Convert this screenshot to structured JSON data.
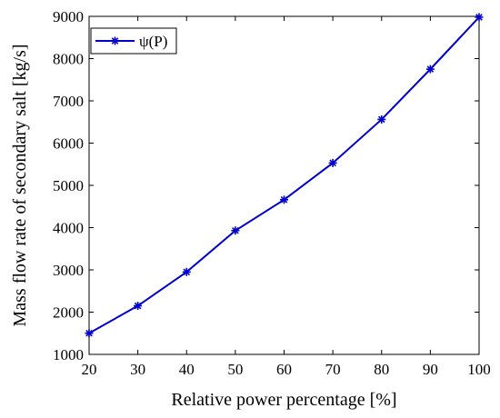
{
  "chart_data": {
    "type": "line",
    "title": "",
    "xlabel": "Relative power percentage [%]",
    "ylabel": "Mass flow rate of secondary salt [kg/s]",
    "xlim": [
      20,
      100
    ],
    "ylim": [
      1000,
      9000
    ],
    "xticks": [
      20,
      30,
      40,
      50,
      60,
      70,
      80,
      90,
      100
    ],
    "yticks": [
      1000,
      2000,
      3000,
      4000,
      5000,
      6000,
      7000,
      8000,
      9000
    ],
    "grid": false,
    "legend_position": "top-left",
    "series": [
      {
        "name": "ψ(P)",
        "color": "#0000cc",
        "marker": "asterisk",
        "x": [
          20,
          30,
          40,
          50,
          60,
          70,
          80,
          90,
          100
        ],
        "y": [
          1500,
          2150,
          2950,
          3930,
          4660,
          5530,
          6560,
          7750,
          8980
        ]
      }
    ]
  }
}
